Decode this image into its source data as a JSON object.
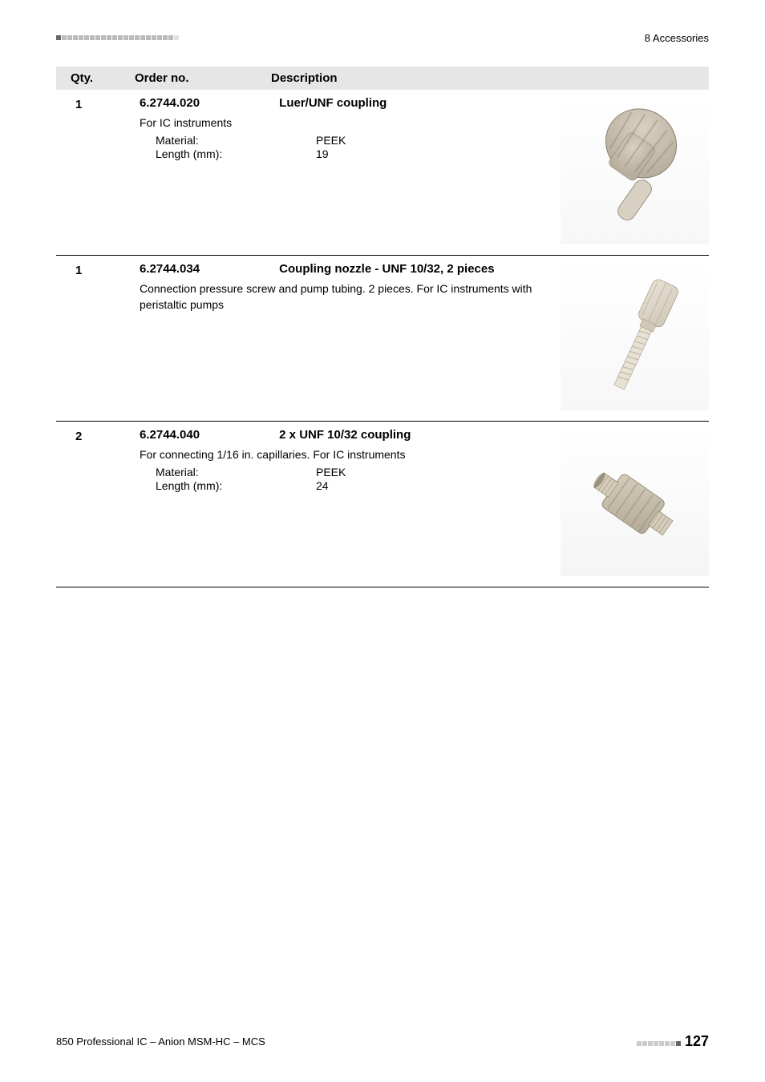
{
  "header": {
    "chapter": "8 Accessories"
  },
  "table_header": {
    "qty": "Qty.",
    "order": "Order no.",
    "desc": "Description"
  },
  "items": [
    {
      "qty": "1",
      "order_no": "6.2744.020",
      "title": "Luer/UNF coupling",
      "subtitle": "For IC instruments",
      "specs": [
        {
          "label": "Material:",
          "value": "PEEK"
        },
        {
          "label": "Length (mm):",
          "value": "19"
        }
      ],
      "img_colors": {
        "body": "#b7ad9c",
        "highlight": "#d8d0c2",
        "shadow": "#8a8070",
        "bg_grad_top": "#ffffff",
        "bg_grad_bot": "#f7f7f7"
      }
    },
    {
      "qty": "1",
      "order_no": "6.2744.034",
      "title": "Coupling nozzle - UNF 10/32, 2 pieces",
      "subtitle": "Connection pressure screw and pump tubing. 2 pieces. For IC instruments with peristaltic pumps",
      "specs": [],
      "img_colors": {
        "body": "#cfc7b7",
        "highlight": "#e8e2d5",
        "shadow": "#a69d8a",
        "bg_grad_top": "#ffffff",
        "bg_grad_bot": "#f7f7f7"
      }
    },
    {
      "qty": "2",
      "order_no": "6.2744.040",
      "title": "2 x UNF 10/32 coupling",
      "subtitle": "For connecting 1/16 in. capillaries. For IC instruments",
      "specs": [
        {
          "label": "Material:",
          "value": "PEEK"
        },
        {
          "label": "Length (mm):",
          "value": "24"
        }
      ],
      "img_colors": {
        "body": "#b3a997",
        "highlight": "#d5ccba",
        "shadow": "#877e6c",
        "bg_grad_top": "#ffffff",
        "bg_grad_bot": "#f5f5f5"
      }
    }
  ],
  "footer": {
    "left": "850 Professional IC – Anion MSM-HC – MCS",
    "page": "127"
  },
  "colors": {
    "header_bg": "#e6e6e6",
    "rule": "#000000",
    "dash_light": "#cccccc",
    "dash_dark": "#666666"
  }
}
